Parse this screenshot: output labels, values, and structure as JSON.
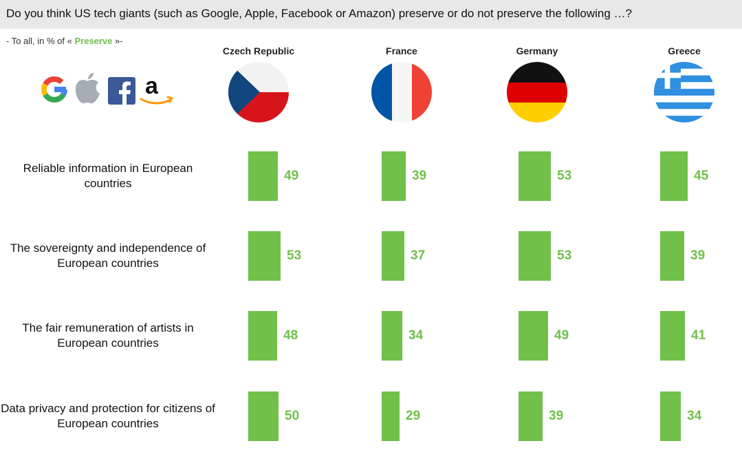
{
  "question": "Do you think US tech giants (such as Google, Apple, Facebook or Amazon) preserve or do not preserve the following …?",
  "subtitle": {
    "prefix": "- To all, in % of « ",
    "highlight": "Preserve",
    "suffix": " »-"
  },
  "logos": [
    "google-logo",
    "apple-logo",
    "facebook-logo",
    "amazon-logo"
  ],
  "colors": {
    "bar": "#70c04a",
    "header_bg": "#e8e8e8"
  },
  "chart_data": {
    "type": "bar",
    "orientation": "horizontal",
    "categories": [
      "Reliable information in European countries",
      "The sovereignty and independence of European countries",
      "The fair remuneration of artists in European countries",
      "Data privacy and protection for citizens of European countries"
    ],
    "series": [
      {
        "name": "Czech Republic",
        "flag": "czech-flag",
        "values": [
          49,
          53,
          48,
          50
        ]
      },
      {
        "name": "France",
        "flag": "france-flag",
        "values": [
          39,
          37,
          34,
          29
        ]
      },
      {
        "name": "Germany",
        "flag": "germany-flag",
        "values": [
          53,
          53,
          49,
          39
        ]
      },
      {
        "name": "Greece",
        "flag": "greece-flag",
        "values": [
          45,
          39,
          41,
          34
        ]
      }
    ],
    "unit": "%",
    "xlim": [
      0,
      100
    ]
  }
}
